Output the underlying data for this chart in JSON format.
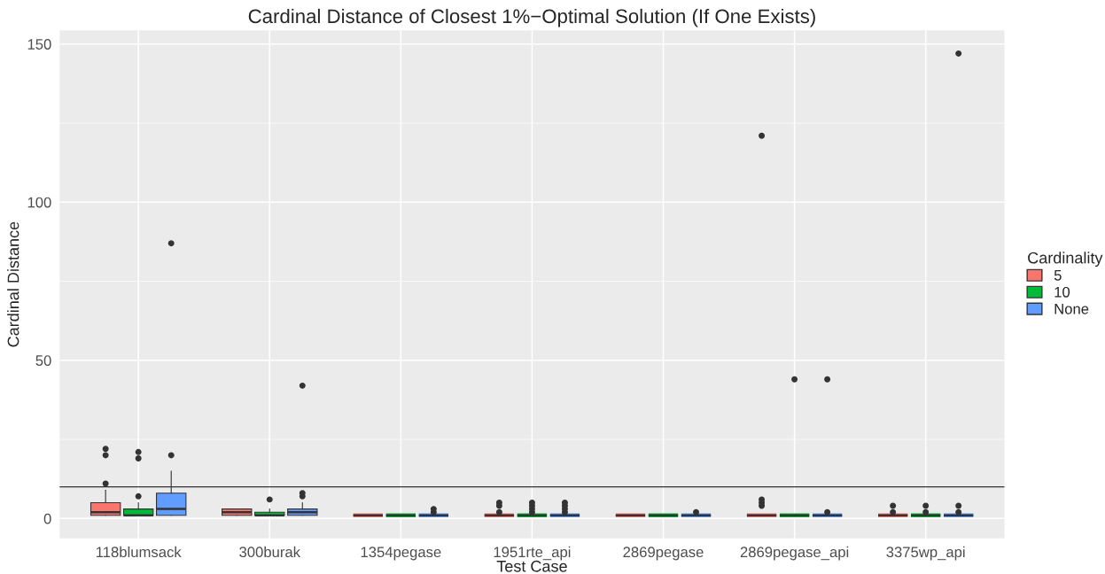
{
  "chart_data": {
    "type": "box",
    "title": "Cardinal Distance of Closest 1%−Optimal Solution (If One Exists)",
    "xlabel": "Test Case",
    "ylabel": "Cardinal Distance",
    "legend_title": "Cardinality",
    "categories": [
      "118blumsack",
      "300burak",
      "1354pegase",
      "1951rte_api",
      "2869pegase",
      "2869pegase_api",
      "3375wp_api"
    ],
    "series": [
      {
        "name": "5",
        "color": "#f8766d",
        "boxes": [
          {
            "low": 1,
            "q1": 1,
            "median": 2,
            "q3": 5,
            "high": 9,
            "outliers": [
              11,
              20,
              22
            ]
          },
          {
            "low": 1,
            "q1": 1,
            "median": 2,
            "q3": 3,
            "high": 3
          },
          {
            "low": 1,
            "q1": 1,
            "median": 1,
            "q3": 1,
            "high": 1
          },
          {
            "low": 1,
            "q1": 1,
            "median": 1,
            "q3": 1,
            "high": 1,
            "outliers": [
              2,
              4,
              5
            ]
          },
          {
            "low": 1,
            "q1": 1,
            "median": 1,
            "q3": 1,
            "high": 1
          },
          {
            "low": 1,
            "q1": 1,
            "median": 1,
            "q3": 1,
            "high": 1,
            "outliers": [
              4,
              5,
              6,
              121
            ]
          },
          {
            "low": 1,
            "q1": 1,
            "median": 1,
            "q3": 1,
            "high": 1,
            "outliers": [
              2,
              4
            ]
          }
        ]
      },
      {
        "name": "10",
        "color": "#00ba38",
        "boxes": [
          {
            "low": 1,
            "q1": 1,
            "median": 1,
            "q3": 3,
            "high": 5,
            "outliers": [
              7,
              19,
              21
            ]
          },
          {
            "low": 1,
            "q1": 1,
            "median": 1,
            "q3": 2,
            "high": 3,
            "outliers": [
              6
            ]
          },
          {
            "low": 1,
            "q1": 1,
            "median": 1,
            "q3": 1,
            "high": 1
          },
          {
            "low": 1,
            "q1": 1,
            "median": 1,
            "q3": 1,
            "high": 1,
            "outliers": [
              2,
              3,
              4,
              5
            ]
          },
          {
            "low": 1,
            "q1": 1,
            "median": 1,
            "q3": 1,
            "high": 1
          },
          {
            "low": 1,
            "q1": 1,
            "median": 1,
            "q3": 1,
            "high": 1,
            "outliers": [
              44
            ]
          },
          {
            "low": 1,
            "q1": 1,
            "median": 1,
            "q3": 1,
            "high": 1,
            "outliers": [
              2,
              4
            ]
          }
        ]
      },
      {
        "name": "None",
        "color": "#619cff",
        "boxes": [
          {
            "low": 1,
            "q1": 1,
            "median": 3,
            "q3": 8,
            "high": 15,
            "outliers": [
              20,
              87
            ]
          },
          {
            "low": 1,
            "q1": 1,
            "median": 2,
            "q3": 3,
            "high": 5,
            "outliers": [
              7,
              8,
              42
            ]
          },
          {
            "low": 1,
            "q1": 1,
            "median": 1,
            "q3": 1,
            "high": 1,
            "outliers": [
              2,
              3
            ]
          },
          {
            "low": 1,
            "q1": 1,
            "median": 1,
            "q3": 1,
            "high": 1,
            "outliers": [
              2,
              3,
              4,
              5
            ]
          },
          {
            "low": 1,
            "q1": 1,
            "median": 1,
            "q3": 1,
            "high": 1,
            "outliers": [
              2
            ]
          },
          {
            "low": 1,
            "q1": 1,
            "median": 1,
            "q3": 1,
            "high": 1,
            "outliers": [
              2,
              44
            ]
          },
          {
            "low": 1,
            "q1": 1,
            "median": 1,
            "q3": 1,
            "high": 1,
            "outliers": [
              2,
              4,
              147
            ]
          }
        ]
      }
    ],
    "ylim": [
      -6.3,
      154.3
    ],
    "yticks": [
      0,
      50,
      100,
      150
    ],
    "ref_lines": [
      {
        "axis": "y",
        "value": 10,
        "label": null,
        "color": "#333333"
      }
    ],
    "grid": true,
    "legend": "right"
  }
}
